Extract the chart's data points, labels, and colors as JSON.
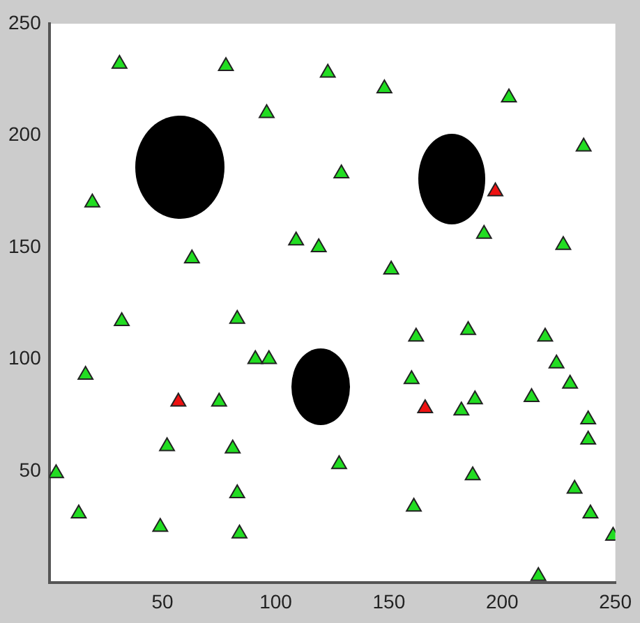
{
  "chart_data": {
    "type": "scatter",
    "xlim": [
      0,
      250
    ],
    "ylim": [
      0,
      250
    ],
    "xticks": [
      50,
      100,
      150,
      200,
      250
    ],
    "yticks": [
      50,
      100,
      150,
      200,
      250
    ],
    "grid": false,
    "legend": false,
    "marker": "triangle",
    "series": [
      {
        "color": "#22dd22",
        "x": [
          31,
          78,
          123,
          148,
          96,
          203,
          236,
          129,
          19,
          63,
          109,
          119,
          192,
          227,
          151,
          32,
          83,
          91,
          97,
          16,
          75,
          52,
          81,
          3,
          13,
          49,
          83,
          84,
          128,
          162,
          185,
          160,
          182,
          188,
          213,
          219,
          224,
          230,
          238,
          238,
          187,
          161,
          232,
          239,
          249,
          216
        ],
        "values": [
          232,
          231,
          228,
          221,
          210,
          217,
          195,
          183,
          170,
          145,
          153,
          150,
          156,
          151,
          140,
          117,
          118,
          100,
          100,
          93,
          81,
          61,
          60,
          49,
          31,
          25,
          40,
          22,
          53,
          110,
          113,
          91,
          77,
          82,
          83,
          110,
          98,
          89,
          73,
          64,
          48,
          34,
          42,
          31,
          21,
          3
        ]
      },
      {
        "color": "#ee1111",
        "x": [
          57,
          197,
          166
        ],
        "values": [
          81,
          175,
          78
        ]
      }
    ]
  }
}
